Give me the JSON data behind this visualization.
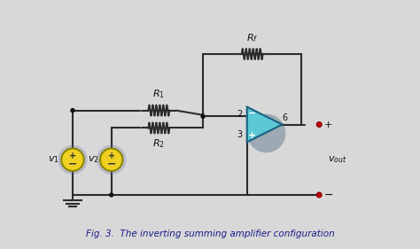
{
  "bg_color": "#d8d8d8",
  "title": "Fig. 3.  The inverting summing amplifier configuration",
  "title_color": "#1a1a8c",
  "title_style": "italic",
  "wire_color": "#2c2c2c",
  "resistor_color": "#2c2c2c",
  "opamp_fill": "#5bc8d4",
  "opamp_edge": "#1a6080",
  "source_fill": "#f0d020",
  "source_edge": "#888800",
  "dot_color": "#cc0000",
  "node_dot_color": "#111111",
  "ground_color": "#2c2c2c",
  "label_color": "#111111",
  "vout_label_color": "#111111"
}
